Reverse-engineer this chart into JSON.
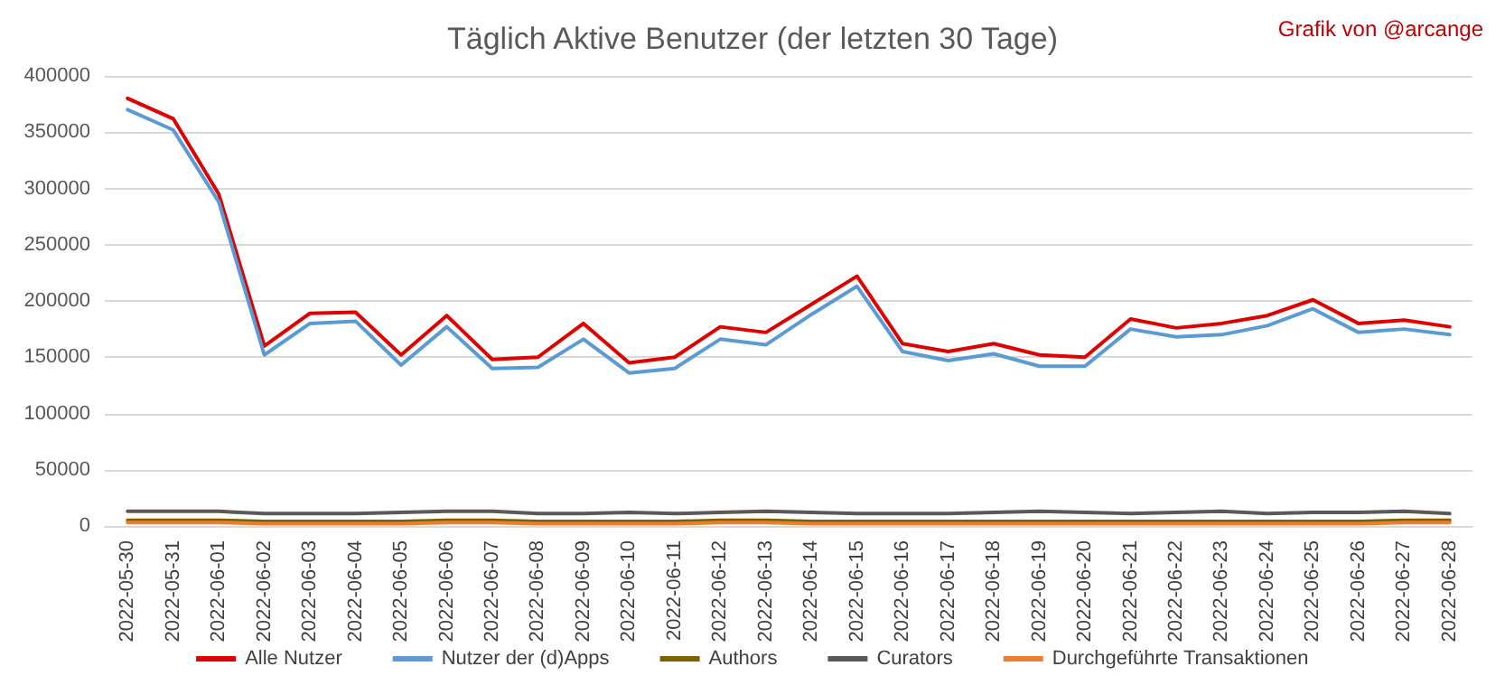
{
  "chart_data": {
    "type": "line",
    "title": "Täglich Aktive Benutzer (der letzten 30 Tage)",
    "annotations": [
      "Grafik von @arcange"
    ],
    "categories": [
      "2022-05-30",
      "2022-05-31",
      "2022-06-01",
      "2022-06-02",
      "2022-06-03",
      "2022-06-04",
      "2022-06-05",
      "2022-06-06",
      "2022-06-07",
      "2022-06-08",
      "2022-06-09",
      "2022-06-10",
      "2022-06-11",
      "2022-06-12",
      "2022-06-13",
      "2022-06-14",
      "2022-06-15",
      "2022-06-16",
      "2022-06-17",
      "2022-06-18",
      "2022-06-19",
      "2022-06-20",
      "2022-06-21",
      "2022-06-22",
      "2022-06-23",
      "2022-06-24",
      "2022-06-25",
      "2022-06-26",
      "2022-06-27",
      "2022-06-28"
    ],
    "series": [
      {
        "name": "Alle Nutzer",
        "color": "#e00000",
        "values": [
          380000,
          362000,
          295000,
          160000,
          189000,
          190000,
          152000,
          187000,
          148000,
          150000,
          180000,
          145000,
          150000,
          177000,
          172000,
          197000,
          222000,
          162000,
          155000,
          162000,
          152000,
          150000,
          184000,
          176000,
          180000,
          187000,
          201000,
          180000,
          183000,
          177000
        ]
      },
      {
        "name": "Nutzer der (d)Apps",
        "color": "#5b9bd5",
        "values": [
          370000,
          352000,
          288000,
          152000,
          180000,
          182000,
          143000,
          177000,
          140000,
          141000,
          166000,
          136000,
          140000,
          166000,
          161000,
          188000,
          213000,
          155000,
          147000,
          153000,
          142000,
          142000,
          175000,
          168000,
          170000,
          178000,
          193000,
          172000,
          175000,
          170000
        ]
      },
      {
        "name": "Authors",
        "color": "#7f6000",
        "values": [
          5000,
          5000,
          5000,
          4000,
          4000,
          4000,
          4000,
          5000,
          5000,
          4000,
          4000,
          4000,
          4000,
          5000,
          5000,
          4000,
          4000,
          4000,
          4000,
          4000,
          4000,
          4000,
          4000,
          4000,
          4000,
          4000,
          4000,
          4000,
          5000,
          5000
        ]
      },
      {
        "name": "Curators",
        "color": "#595959",
        "values": [
          13000,
          13000,
          13000,
          11000,
          11000,
          11000,
          12000,
          13000,
          13000,
          11000,
          11000,
          12000,
          11000,
          12000,
          13000,
          12000,
          11000,
          11000,
          11000,
          12000,
          13000,
          12000,
          11000,
          12000,
          13000,
          11000,
          12000,
          12000,
          13000,
          11000
        ]
      },
      {
        "name": "Durchgeführte Transaktionen",
        "color": "#ed7d31",
        "values": [
          3000,
          3000,
          3000,
          2000,
          2000,
          2000,
          2000,
          3000,
          3000,
          2000,
          2000,
          2000,
          2000,
          3000,
          3000,
          2000,
          2000,
          2000,
          2000,
          2000,
          2000,
          2000,
          2000,
          2000,
          2000,
          2000,
          2000,
          2000,
          3000,
          3000
        ]
      }
    ],
    "ylim": [
      0,
      400000
    ],
    "yticks": [
      0,
      50000,
      100000,
      150000,
      200000,
      250000,
      300000,
      350000,
      400000
    ],
    "grid": "y",
    "legend": "bottom",
    "marker": "none",
    "line_style": "solid"
  }
}
